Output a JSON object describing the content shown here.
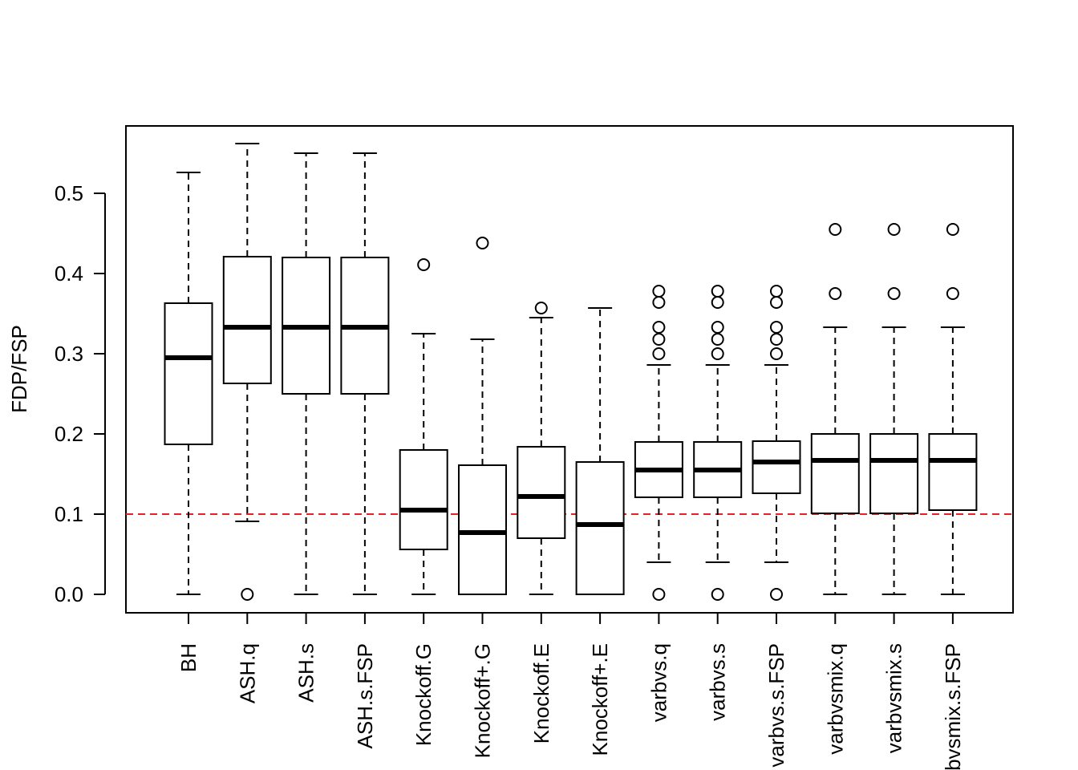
{
  "chart_data": {
    "type": "boxplot",
    "title": "",
    "xlabel": "",
    "ylabel": "FDP/FSP",
    "ylim": [
      -0.022,
      0.585
    ],
    "yticks": [
      "0.0",
      "0.1",
      "0.2",
      "0.3",
      "0.4",
      "0.5"
    ],
    "reference_line": {
      "y": 0.1,
      "color": "#e8202a",
      "style": "dashed"
    },
    "categories": [
      "BH",
      "ASH.q",
      "ASH.s",
      "ASH.s.FSP",
      "Knockoff.G",
      "Knockoff+.G",
      "Knockoff.E",
      "Knockoff+.E",
      "varbvs.q",
      "varbvs.s",
      "varbvs.s.FSP",
      "varbvsmix.q",
      "varbvsmix.s",
      "varbvsmix.s.FSP"
    ],
    "boxes": [
      {
        "name": "BH",
        "whisker_low": 0.0,
        "q1": 0.187,
        "median": 0.295,
        "q3": 0.363,
        "whisker_high": 0.526,
        "outliers": []
      },
      {
        "name": "ASH.q",
        "whisker_low": 0.091,
        "q1": 0.263,
        "median": 0.333,
        "q3": 0.421,
        "whisker_high": 0.562,
        "outliers": [
          0.0
        ]
      },
      {
        "name": "ASH.s",
        "whisker_low": 0.0,
        "q1": 0.25,
        "median": 0.333,
        "q3": 0.42,
        "whisker_high": 0.55,
        "outliers": []
      },
      {
        "name": "ASH.s.FSP",
        "whisker_low": 0.0,
        "q1": 0.25,
        "median": 0.333,
        "q3": 0.42,
        "whisker_high": 0.55,
        "outliers": []
      },
      {
        "name": "Knockoff.G",
        "whisker_low": 0.0,
        "q1": 0.056,
        "median": 0.105,
        "q3": 0.18,
        "whisker_high": 0.325,
        "outliers": [
          0.411
        ]
      },
      {
        "name": "Knockoff+.G",
        "whisker_low": 0.0,
        "q1": 0.0,
        "median": 0.077,
        "q3": 0.161,
        "whisker_high": 0.318,
        "outliers": [
          0.438
        ]
      },
      {
        "name": "Knockoff.E",
        "whisker_low": 0.0,
        "q1": 0.07,
        "median": 0.122,
        "q3": 0.184,
        "whisker_high": 0.345,
        "outliers": [
          0.357
        ]
      },
      {
        "name": "Knockoff+.E",
        "whisker_low": 0.0,
        "q1": 0.0,
        "median": 0.087,
        "q3": 0.165,
        "whisker_high": 0.357,
        "outliers": []
      },
      {
        "name": "varbvs.q",
        "whisker_low": 0.04,
        "q1": 0.121,
        "median": 0.155,
        "q3": 0.19,
        "whisker_high": 0.286,
        "outliers": [
          0.0,
          0.3,
          0.318,
          0.333,
          0.364,
          0.378
        ]
      },
      {
        "name": "varbvs.s",
        "whisker_low": 0.04,
        "q1": 0.121,
        "median": 0.155,
        "q3": 0.19,
        "whisker_high": 0.286,
        "outliers": [
          0.0,
          0.3,
          0.318,
          0.333,
          0.364,
          0.378
        ]
      },
      {
        "name": "varbvs.s.FSP",
        "whisker_low": 0.04,
        "q1": 0.126,
        "median": 0.165,
        "q3": 0.191,
        "whisker_high": 0.286,
        "outliers": [
          0.0,
          0.3,
          0.318,
          0.333,
          0.364,
          0.378
        ]
      },
      {
        "name": "varbvsmix.q",
        "whisker_low": 0.0,
        "q1": 0.101,
        "median": 0.167,
        "q3": 0.2,
        "whisker_high": 0.333,
        "outliers": [
          0.375,
          0.455
        ]
      },
      {
        "name": "varbvsmix.s",
        "whisker_low": 0.0,
        "q1": 0.101,
        "median": 0.167,
        "q3": 0.2,
        "whisker_high": 0.333,
        "outliers": [
          0.375,
          0.455
        ]
      },
      {
        "name": "varbvsmix.s.FSP",
        "whisker_low": 0.0,
        "q1": 0.105,
        "median": 0.167,
        "q3": 0.2,
        "whisker_high": 0.333,
        "outliers": [
          0.375,
          0.455
        ]
      }
    ],
    "grid": false,
    "legend": "none"
  }
}
